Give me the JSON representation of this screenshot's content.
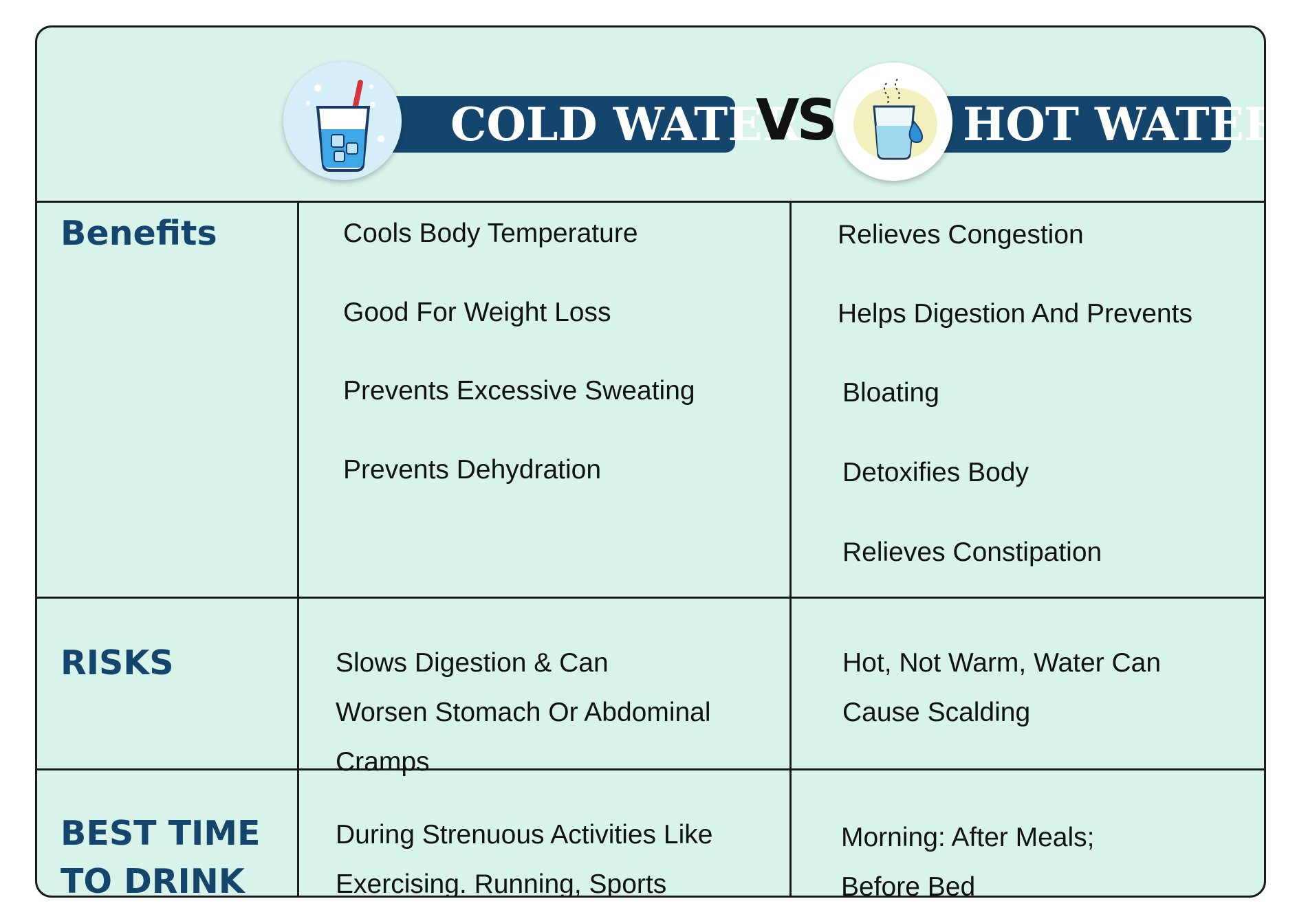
{
  "colors": {
    "background": "#d8f3e9",
    "banner": "#14466d",
    "label": "#14466d",
    "text": "#111111",
    "border": "#1a1a1a"
  },
  "header": {
    "cold_title": "COLD WATER",
    "vs": "VS",
    "hot_title": "HOT WATER",
    "cold_icon": "iced-water-glass-icon",
    "hot_icon": "hot-water-glass-icon"
  },
  "rows": [
    {
      "label": "Benefits",
      "cold": [
        "Cools Body Temperature",
        "Good For Weight Loss",
        "Prevents Excessive Sweating",
        "Prevents Dehydration"
      ],
      "hot": [
        "Relieves Congestion",
        "Helps Digestion And Prevents",
        "Bloating",
        "Detoxifies Body",
        "Relieves Constipation"
      ]
    },
    {
      "label": "RISKS",
      "cold": [
        "Slows Digestion & Can",
        "Worsen Stomach Or Abdominal",
        "Cramps"
      ],
      "hot": [
        "Hot, Not Warm, Water Can",
        "Cause Scalding"
      ]
    },
    {
      "label": "BEST TIME\nTO DRINK",
      "cold": [
        "During Strenuous Activities Like",
        "Exercising. Running, Sports"
      ],
      "hot": [
        "Morning: After Meals;",
        "Before Bed"
      ]
    }
  ]
}
